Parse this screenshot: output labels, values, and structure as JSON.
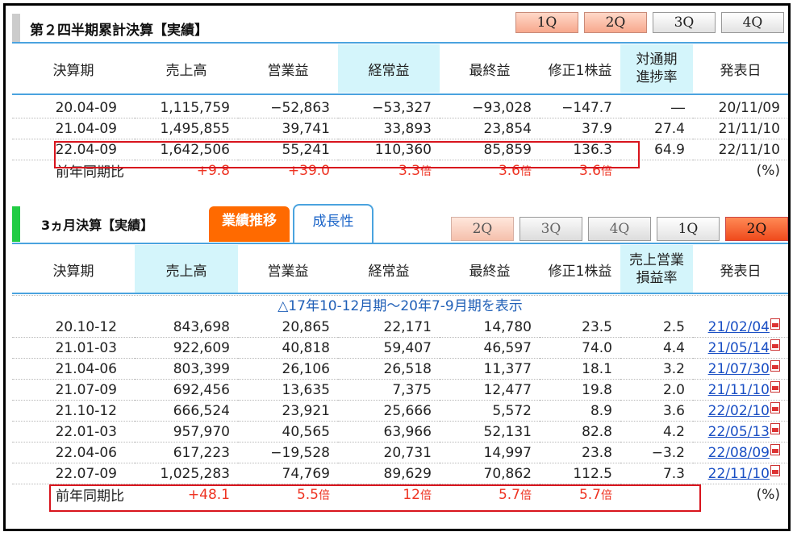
{
  "section1": {
    "title": "第２四半期累計決算【実績】",
    "quarter_tabs": [
      "1Q",
      "2Q",
      "3Q",
      "4Q"
    ],
    "headers": [
      "決算期",
      "売上高",
      "営業益",
      "経常益",
      "最終益",
      "修正1株益",
      "対通期\n進捗率",
      "発表日"
    ],
    "rows": [
      [
        "20.04-09",
        "1,115,759",
        "−52,863",
        "−53,327",
        "−93,028",
        "−147.7",
        "―",
        "20/11/09"
      ],
      [
        "21.04-09",
        "1,495,855",
        "39,741",
        "33,893",
        "23,854",
        "37.9",
        "27.4",
        "21/11/10"
      ],
      [
        "22.04-09",
        "1,642,506",
        "55,241",
        "110,360",
        "85,859",
        "136.3",
        "64.9",
        "22/11/10"
      ]
    ],
    "yoy": {
      "label": "前年同期比",
      "values": [
        "+9.8",
        "+39.0",
        "3.3",
        "3.6",
        "3.6"
      ],
      "bai": "倍",
      "unit": "(%)"
    }
  },
  "section2": {
    "title": "3ヵ月決算【実績】",
    "subtabs": [
      "業績推移",
      "成長性"
    ],
    "quarter_tabs": [
      "2Q",
      "3Q",
      "4Q",
      "1Q",
      "2Q"
    ],
    "headers": [
      "決算期",
      "売上高",
      "営業益",
      "経常益",
      "最終益",
      "修正1株益",
      "売上営業\n損益率",
      "発表日"
    ],
    "notice": "△17年10-12月期～20年7-9月期を表示",
    "rows": [
      [
        "20.10-12",
        "843,698",
        "20,865",
        "22,171",
        "14,780",
        "23.5",
        "2.5",
        "21/02/04"
      ],
      [
        "21.01-03",
        "922,609",
        "40,818",
        "59,407",
        "46,597",
        "74.0",
        "4.4",
        "21/05/14"
      ],
      [
        "21.04-06",
        "803,399",
        "26,106",
        "26,518",
        "11,377",
        "18.1",
        "3.2",
        "21/07/30"
      ],
      [
        "21.07-09",
        "692,456",
        "13,635",
        "7,375",
        "12,477",
        "19.8",
        "2.0",
        "21/11/10"
      ],
      [
        "21.10-12",
        "666,524",
        "23,921",
        "25,666",
        "5,572",
        "8.9",
        "3.6",
        "22/02/10"
      ],
      [
        "22.01-03",
        "957,970",
        "40,565",
        "63,966",
        "52,131",
        "82.8",
        "4.2",
        "22/05/13"
      ],
      [
        "22.04-06",
        "617,223",
        "−19,528",
        "20,731",
        "14,997",
        "23.8",
        "−3.2",
        "22/08/09"
      ],
      [
        "22.07-09",
        "1,025,283",
        "74,769",
        "89,629",
        "70,862",
        "112.5",
        "7.3",
        "22/11/10"
      ]
    ],
    "yoy": {
      "label": "前年同期比",
      "values": [
        "+48.1",
        "5.5",
        "12",
        "5.7",
        "5.7"
      ],
      "bai": "倍",
      "unit": "(%)"
    }
  },
  "colors": {
    "accent_blue": "#4aa3df",
    "cyan_header": "#d4f5fb",
    "highlight_red": "#d8141d",
    "orange": "#ff6a00",
    "green": "#22cc44",
    "gray": "#cccccc"
  }
}
